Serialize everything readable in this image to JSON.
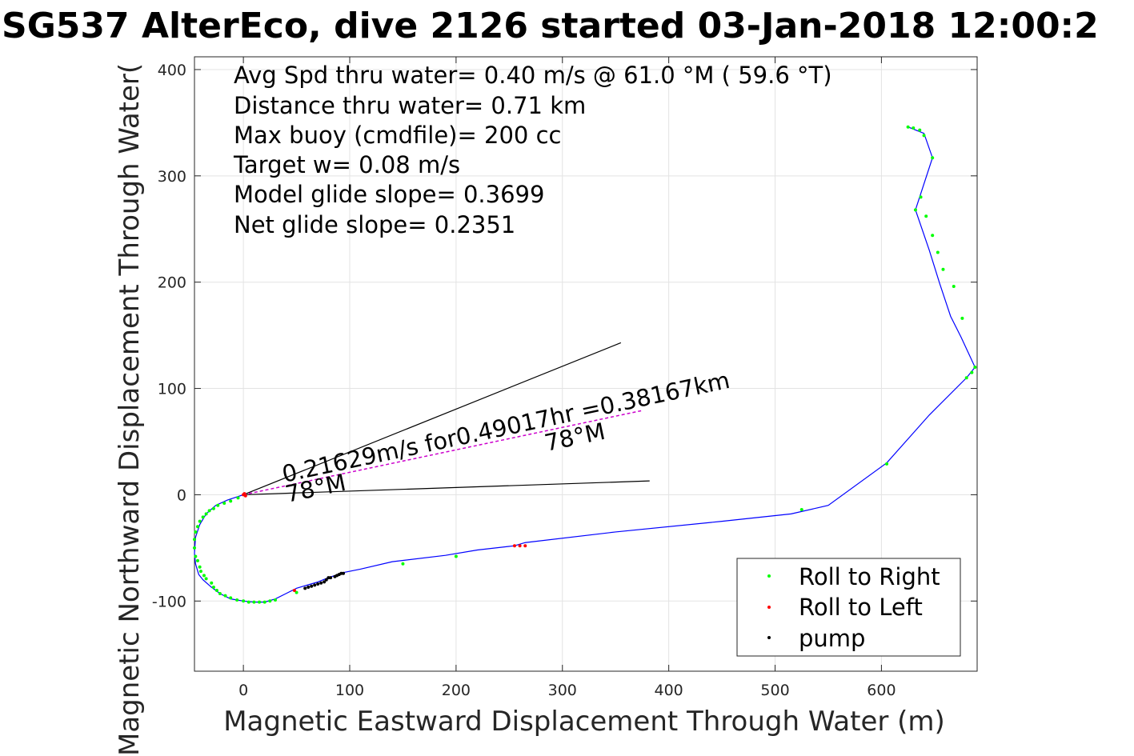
{
  "chart_data": {
    "type": "scatter",
    "title": "SG537 AlterEco, dive 2126 started 03-Jan-2018 12:00:2",
    "xlabel": "Magnetic Eastward Displacement Through Water (m)",
    "ylabel": "Magnetic Northward Displacement Through Water(",
    "xlim": [
      -46,
      690
    ],
    "ylim": [
      -166,
      412
    ],
    "xticks": [
      0,
      100,
      200,
      300,
      400,
      500,
      600
    ],
    "yticks": [
      -100,
      0,
      100,
      200,
      300,
      400
    ],
    "grid": true,
    "info_lines": [
      "Avg Spd thru water=  0.40 m/s @  61.0 °M ( 59.6 °T)",
      "Distance thru water=  0.71 km",
      "Max buoy (cmdfile)= 200 cc",
      "Target w= 0.08 m/s",
      "Model glide slope= 0.3699",
      "Net glide slope= 0.2351"
    ],
    "annotations": [
      {
        "text": "0.21629m/s for0.49017hr =0.38167km",
        "x": 35,
        "y": 5
      },
      {
        "text": "78°M",
        "x": 280,
        "y": 43
      },
      {
        "text": "78°M",
        "x": 40,
        "y": -5
      }
    ],
    "heading_lines": [
      {
        "name": "upper",
        "x": [
          0,
          355
        ],
        "y": [
          0,
          143
        ]
      },
      {
        "name": "lower",
        "x": [
          0,
          382
        ],
        "y": [
          0,
          13
        ]
      }
    ],
    "current_line": {
      "x": [
        0,
        374
      ],
      "y": [
        0,
        79
      ]
    },
    "track": {
      "color": "#0000ff",
      "x": [
        0,
        -15,
        -26,
        -35,
        -41,
        -45,
        -46,
        -45,
        -42,
        -38,
        -30,
        -22,
        -12,
        0,
        10,
        20,
        30,
        40,
        50,
        60,
        70,
        80,
        95,
        110,
        140,
        190,
        220,
        255,
        265,
        350,
        450,
        515,
        550,
        605,
        645,
        680,
        688,
        675,
        665,
        655,
        645,
        632,
        648,
        640,
        625
      ],
      "y": [
        0,
        -5,
        -10,
        -18,
        -28,
        -40,
        -55,
        -65,
        -75,
        -80,
        -87,
        -93,
        -98,
        -100,
        -101,
        -101,
        -98,
        -93,
        -88,
        -85,
        -82,
        -78,
        -73,
        -70,
        -63,
        -57,
        -52,
        -48,
        -45,
        -35,
        -25,
        -18,
        -10,
        30,
        75,
        110,
        120,
        148,
        168,
        198,
        230,
        268,
        317,
        340,
        346
      ]
    },
    "series": [
      {
        "name": "Roll to Right",
        "color": "#00ff00",
        "x": [
          -5,
          -12,
          -18,
          -24,
          -28,
          -32,
          -35,
          -38,
          -41,
          -43,
          -45,
          -46,
          -46,
          -45,
          -43,
          -41,
          -40,
          -37,
          -35,
          -30,
          -28,
          -25,
          -22,
          -17,
          -12,
          -6,
          0,
          5,
          10,
          15,
          20,
          25,
          30,
          50,
          150,
          200,
          525,
          605,
          680,
          685,
          688,
          676,
          668,
          658,
          653,
          648,
          642,
          637,
          632,
          648,
          640,
          636,
          630,
          625
        ],
        "y": [
          -3,
          -6,
          -8,
          -10,
          -13,
          -15,
          -18,
          -21,
          -25,
          -30,
          -35,
          -42,
          -50,
          -58,
          -62,
          -68,
          -72,
          -76,
          -79,
          -83,
          -87,
          -90,
          -93,
          -95,
          -97,
          -99,
          -100,
          -101,
          -101,
          -101,
          -101,
          -100,
          -99,
          -92,
          -65,
          -58,
          -14,
          29,
          110,
          115,
          120,
          166,
          196,
          212,
          228,
          244,
          262,
          280,
          268,
          317,
          338,
          343,
          345,
          346
        ]
      },
      {
        "name": "Roll to Left",
        "color": "#ff0000",
        "x": [
          0,
          1,
          2,
          48,
          255,
          260,
          265
        ],
        "y": [
          0,
          1,
          -1,
          -90,
          -48,
          -48,
          -48
        ]
      },
      {
        "name": "pump",
        "color": "#000000",
        "x": [
          58,
          61,
          64,
          67,
          70,
          73,
          76,
          78,
          80,
          82,
          86,
          88,
          90,
          92,
          94
        ],
        "y": [
          -88,
          -87,
          -86,
          -85,
          -84,
          -83,
          -82,
          -80,
          -78,
          -78,
          -77,
          -76,
          -75,
          -74,
          -74
        ]
      }
    ],
    "legend": {
      "placement": "bottom-right"
    }
  }
}
